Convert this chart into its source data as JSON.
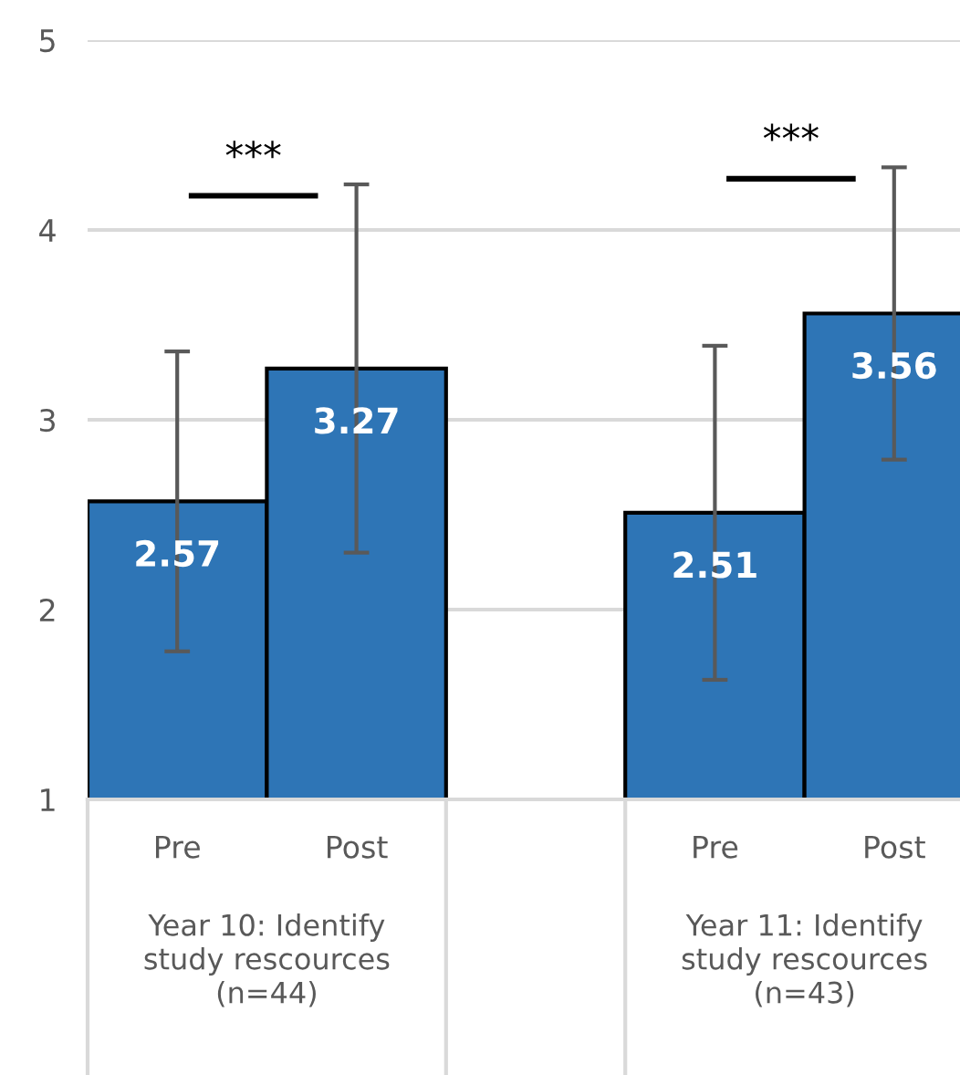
{
  "chart_data": {
    "type": "bar",
    "categories": [
      "Pre",
      "Post",
      null,
      "Pre",
      "Post"
    ],
    "values": [
      2.57,
      3.27,
      null,
      2.51,
      3.56
    ],
    "errors": [
      0.79,
      0.97,
      null,
      0.88,
      0.77
    ],
    "color": "#2e75b6",
    "ylim": [
      1,
      5
    ],
    "yticks": [
      1,
      2,
      3,
      4,
      5
    ],
    "grid": "y",
    "data_labels": true,
    "annotations": [
      "***",
      "Year 10: Identify\nstudy rescources\n(n=44)",
      "***",
      "Year 11: Identify\nstudy rescources\n(n=43)"
    ]
  }
}
